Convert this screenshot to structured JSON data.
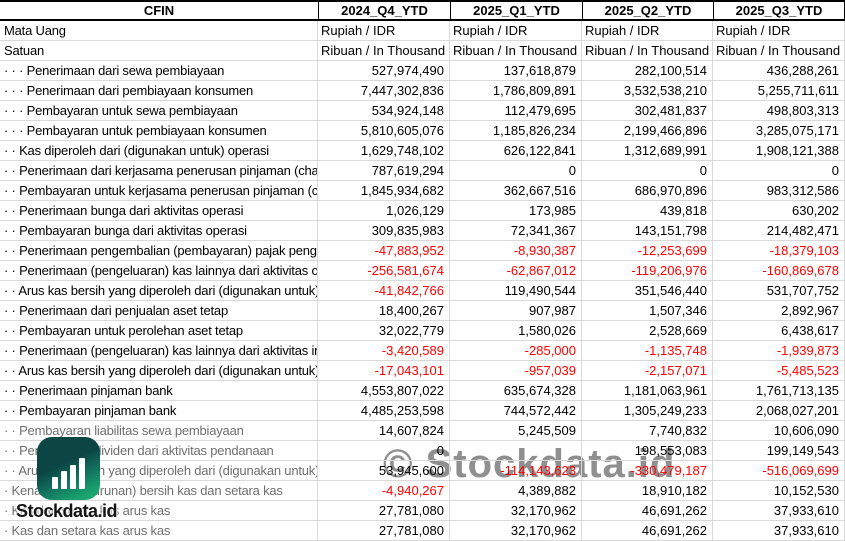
{
  "table": {
    "columns": [
      "CFIN",
      "2024_Q4_YTD",
      "2025_Q1_YTD",
      "2025_Q2_YTD",
      "2025_Q3_YTD"
    ],
    "rows": [
      {
        "label": "Mata Uang",
        "align": "left",
        "values": [
          "Rupiah / IDR",
          "Rupiah / IDR",
          "Rupiah / IDR",
          "Rupiah / IDR"
        ]
      },
      {
        "label": "Satuan",
        "align": "left",
        "values": [
          "Ribuan / In Thousand",
          "Ribuan / In Thousand",
          "Ribuan / In Thousand",
          "Ribuan / In Thousand"
        ]
      },
      {
        "label": "· · · Penerimaan dari sewa pembiayaan",
        "values": [
          "527,974,490",
          "137,618,879",
          "282,100,514",
          "436,288,261"
        ]
      },
      {
        "label": "· · · Penerimaan dari pembiayaan konsumen",
        "values": [
          "7,447,302,836",
          "1,786,809,891",
          "3,532,538,210",
          "5,255,711,611"
        ]
      },
      {
        "label": "· · · Pembayaran untuk sewa pembiayaan",
        "values": [
          "534,924,148",
          "112,479,695",
          "302,481,837",
          "498,803,313"
        ]
      },
      {
        "label": "· · · Pembayaran untuk pembiayaan konsumen",
        "values": [
          "5,810,605,076",
          "1,185,826,234",
          "2,199,466,896",
          "3,285,075,171"
        ]
      },
      {
        "label": "· · Kas diperoleh dari (digunakan untuk) operasi",
        "values": [
          "1,629,748,102",
          "626,122,841",
          "1,312,689,991",
          "1,908,121,388"
        ]
      },
      {
        "label": "· · Penerimaan dari kerjasama penerusan pinjaman (channeling)",
        "values": [
          "787,619,294",
          "0",
          "0",
          "0"
        ]
      },
      {
        "label": "· · Pembayaran untuk kerjasama penerusan pinjaman (channeling)",
        "values": [
          "1,845,934,682",
          "362,667,516",
          "686,970,896",
          "983,312,586"
        ]
      },
      {
        "label": "· · Penerimaan bunga dari aktivitas operasi",
        "values": [
          "1,026,129",
          "173,985",
          "439,818",
          "630,202"
        ]
      },
      {
        "label": "· · Pembayaran bunga dari aktivitas operasi",
        "values": [
          "309,835,983",
          "72,341,367",
          "143,151,798",
          "214,482,471"
        ]
      },
      {
        "label": "· · Penerimaan pengembalian (pembayaran) pajak penghasilan",
        "values": [
          "-47,883,952",
          "-8,930,387",
          "-12,253,699",
          "-18,379,103"
        ]
      },
      {
        "label": "· · Penerimaan (pengeluaran) kas lainnya dari aktivitas operasi",
        "values": [
          "-256,581,674",
          "-62,867,012",
          "-119,206,976",
          "-160,869,678"
        ]
      },
      {
        "label": "· · Arus kas bersih yang diperoleh dari (digunakan untuk) aktivitas operasi",
        "values": [
          "-41,842,766",
          "119,490,544",
          "351,546,440",
          "531,707,752"
        ]
      },
      {
        "label": "· · Penerimaan dari penjualan aset tetap",
        "values": [
          "18,400,267",
          "907,987",
          "1,507,346",
          "2,892,967"
        ]
      },
      {
        "label": "· · Pembayaran untuk perolehan aset tetap",
        "values": [
          "32,022,779",
          "1,580,026",
          "2,528,669",
          "6,438,617"
        ]
      },
      {
        "label": "· · Penerimaan (pengeluaran) kas lainnya dari aktivitas investasi",
        "values": [
          "-3,420,589",
          "-285,000",
          "-1,135,748",
          "-1,939,873"
        ]
      },
      {
        "label": "· · Arus kas bersih yang diperoleh dari (digunakan untuk) aktivitas investasi",
        "values": [
          "-17,043,101",
          "-957,039",
          "-2,157,071",
          "-5,485,523"
        ]
      },
      {
        "label": "· · Penerimaan pinjaman bank",
        "values": [
          "4,553,807,022",
          "635,674,328",
          "1,181,063,961",
          "1,761,713,135"
        ]
      },
      {
        "label": "· · Pembayaran pinjaman bank",
        "values": [
          "4,485,253,598",
          "744,572,442",
          "1,305,249,233",
          "2,068,027,201"
        ]
      },
      {
        "label": "· · Pembayaran liabilitas sewa pembiayaan",
        "muted": true,
        "values": [
          "14,607,824",
          "5,245,509",
          "7,740,832",
          "10,606,090"
        ]
      },
      {
        "label": "· · Pembayaran dividen dari aktivitas pendanaan",
        "muted": true,
        "values": [
          "0",
          "",
          "198,553,083",
          "199,149,543"
        ]
      },
      {
        "label": "· · Arus kas bersih yang diperoleh dari (digunakan untuk) aktivitas pendanaan",
        "muted": true,
        "values": [
          "53,945,600",
          "-114,143,623",
          "-330,479,187",
          "-516,069,699"
        ]
      },
      {
        "label": "· Kenaikan (penurunan) bersih kas dan setara kas",
        "muted": true,
        "values": [
          "-4,940,267",
          "4,389,882",
          "18,910,182",
          "10,152,530"
        ]
      },
      {
        "label": "· Kas dan setara kas arus kas",
        "muted": true,
        "values": [
          "27,781,080",
          "32,170,962",
          "46,691,262",
          "37,933,610"
        ]
      },
      {
        "label": "· Kas dan setara kas arus kas",
        "muted": true,
        "values": [
          "27,781,080",
          "32,170,962",
          "46,691,262",
          "37,933,610"
        ]
      }
    ]
  },
  "branding": {
    "logo_text": "Stockdata.id",
    "watermark": "© Stockdata.id"
  },
  "colors": {
    "negative": "#fe0000",
    "grid": "#d9d9d9",
    "muted_label": "#6f6f6f",
    "logo_dark": "#0c4644",
    "logo_green": "#1fb077"
  }
}
